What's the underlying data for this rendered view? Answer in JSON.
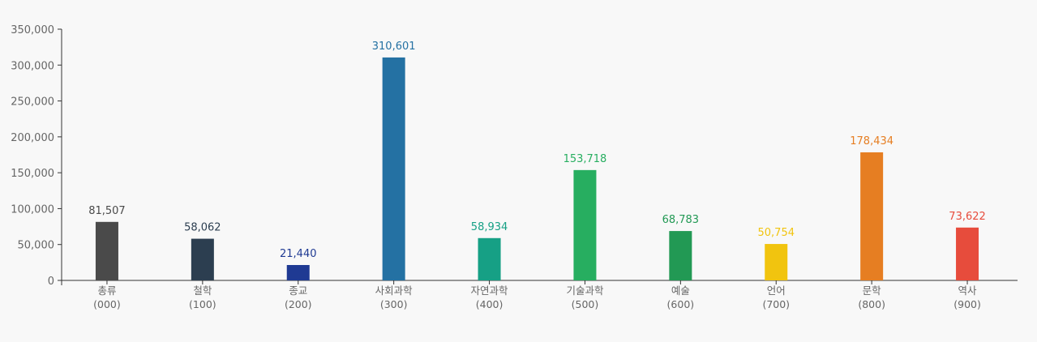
{
  "chart_data": {
    "type": "bar",
    "categories": [
      [
        "총류",
        "(000)"
      ],
      [
        "철학",
        "(100)"
      ],
      [
        "종교",
        "(200)"
      ],
      [
        "사회과학",
        "(300)"
      ],
      [
        "자연과학",
        "(400)"
      ],
      [
        "기술과학",
        "(500)"
      ],
      [
        "예술",
        "(600)"
      ],
      [
        "언어",
        "(700)"
      ],
      [
        "문학",
        "(800)"
      ],
      [
        "역사",
        "(900)"
      ]
    ],
    "values": [
      81507,
      58062,
      21440,
      310601,
      58934,
      153718,
      68783,
      50754,
      178434,
      73622
    ],
    "data_labels": [
      "81,507",
      "58,062",
      "21,440",
      "310,601",
      "58,934",
      "153,718",
      "68,783",
      "50,754",
      "178,434",
      "73,622"
    ],
    "colors": [
      "#4a4a4a",
      "#2c3e50",
      "#1f3a93",
      "#2471a3",
      "#16a085",
      "#27ae60",
      "#229954",
      "#f1c40f",
      "#e67e22",
      "#e74c3c"
    ],
    "ylim": [
      0,
      350000
    ],
    "yticks": [
      "0",
      "50,000",
      "100,000",
      "150,000",
      "200,000",
      "250,000",
      "300,000",
      "350,000"
    ],
    "grid": false,
    "legend": "none"
  }
}
